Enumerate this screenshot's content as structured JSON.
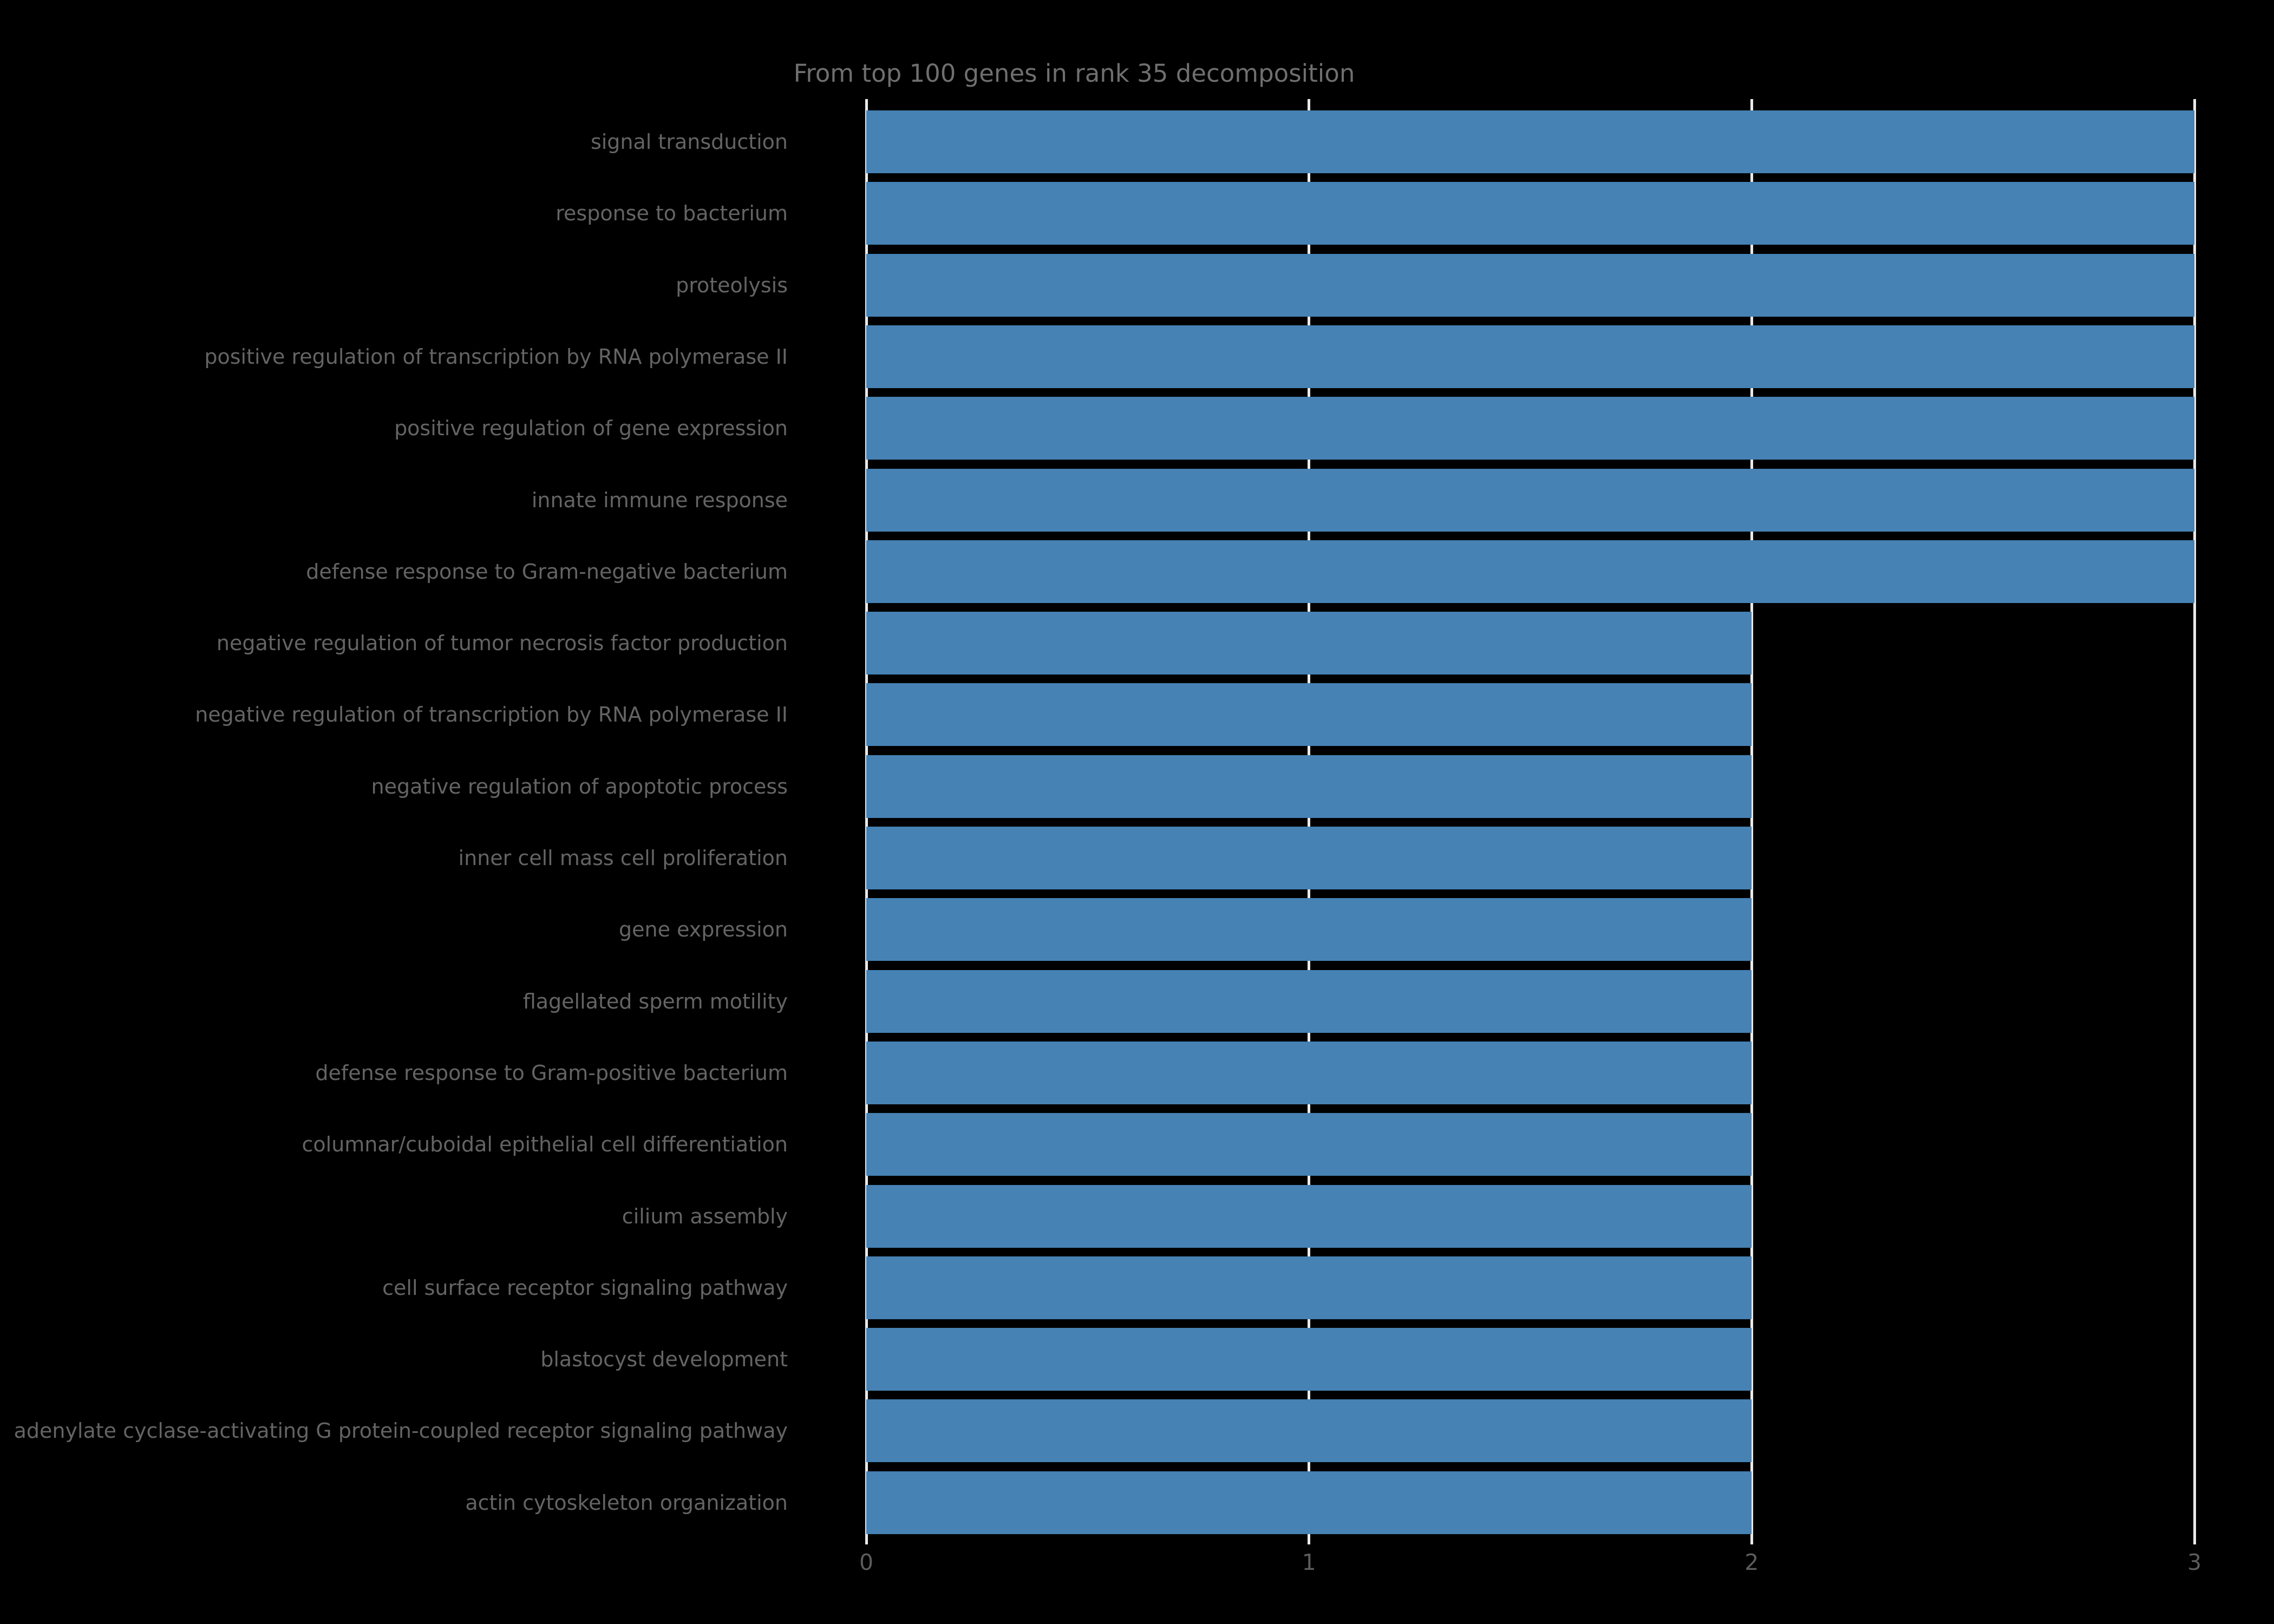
{
  "chart": {
    "background_color": "#000000",
    "bar_color": "#4682b4",
    "gridline_color": "#e9e9e9",
    "title_color": "#6f6f6f",
    "label_color": "#646464",
    "tick_color": "#5c5c5c"
  },
  "chart_data": {
    "type": "bar",
    "orientation": "horizontal",
    "title": "From top 100 genes in rank 35 decomposition",
    "xlabel": "",
    "ylabel": "",
    "categories": [
      "signal transduction",
      "response to bacterium",
      "proteolysis",
      "positive regulation of transcription by RNA polymerase II",
      "positive regulation of gene expression",
      "innate immune response",
      "defense response to Gram-negative bacterium",
      "negative regulation of tumor necrosis factor production",
      "negative regulation of transcription by RNA polymerase II",
      "negative regulation of apoptotic process",
      "inner cell mass cell proliferation",
      "gene expression",
      "flagellated sperm motility",
      "defense response to Gram-positive bacterium",
      "columnar/cuboidal epithelial cell differentiation",
      "cilium assembly",
      "cell surface receptor signaling pathway",
      "blastocyst development",
      "adenylate cyclase-activating G protein-coupled receptor signaling pathway",
      "actin cytoskeleton organization"
    ],
    "values": [
      3,
      3,
      3,
      3,
      3,
      3,
      3,
      2,
      2,
      2,
      2,
      2,
      2,
      2,
      2,
      2,
      2,
      2,
      2,
      2
    ],
    "xticks": [
      "0",
      "1",
      "2",
      "3"
    ],
    "xlim": [
      0,
      3
    ],
    "grid": true,
    "legend": false
  }
}
